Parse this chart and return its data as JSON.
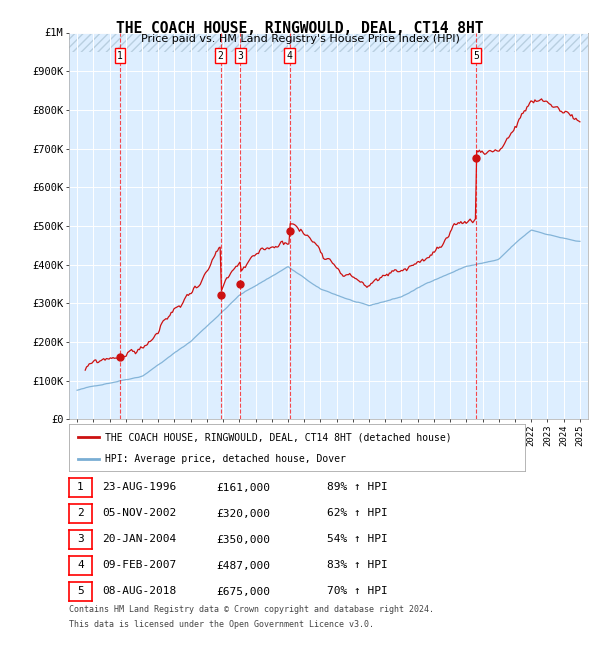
{
  "title": "THE COACH HOUSE, RINGWOULD, DEAL, CT14 8HT",
  "subtitle": "Price paid vs. HM Land Registry's House Price Index (HPI)",
  "ylim": [
    0,
    1000000
  ],
  "yticks": [
    0,
    100000,
    200000,
    300000,
    400000,
    500000,
    600000,
    700000,
    800000,
    900000,
    1000000
  ],
  "ytick_labels": [
    "£0",
    "£100K",
    "£200K",
    "£300K",
    "£400K",
    "£500K",
    "£600K",
    "£700K",
    "£800K",
    "£900K",
    "£1M"
  ],
  "xlim_start": 1993.5,
  "xlim_end": 2025.5,
  "hpi_color": "#7aaed4",
  "price_color": "#cc1111",
  "sale_dates": [
    1996.644,
    2002.844,
    2004.055,
    2007.107,
    2018.597
  ],
  "sale_prices": [
    161000,
    320000,
    350000,
    487000,
    675000
  ],
  "sale_labels": [
    "1",
    "2",
    "3",
    "4",
    "5"
  ],
  "legend_property": "THE COACH HOUSE, RINGWOULD, DEAL, CT14 8HT (detached house)",
  "legend_hpi": "HPI: Average price, detached house, Dover",
  "table_data": [
    [
      "1",
      "23-AUG-1996",
      "£161,000",
      "89% ↑ HPI"
    ],
    [
      "2",
      "05-NOV-2002",
      "£320,000",
      "62% ↑ HPI"
    ],
    [
      "3",
      "20-JAN-2004",
      "£350,000",
      "54% ↑ HPI"
    ],
    [
      "4",
      "09-FEB-2007",
      "£487,000",
      "83% ↑ HPI"
    ],
    [
      "5",
      "08-AUG-2018",
      "£675,000",
      "70% ↑ HPI"
    ]
  ],
  "footer_line1": "Contains HM Land Registry data © Crown copyright and database right 2024.",
  "footer_line2": "This data is licensed under the Open Government Licence v3.0.",
  "background_chart": "#ddeeff",
  "hatch_color": "#b8cfe0"
}
